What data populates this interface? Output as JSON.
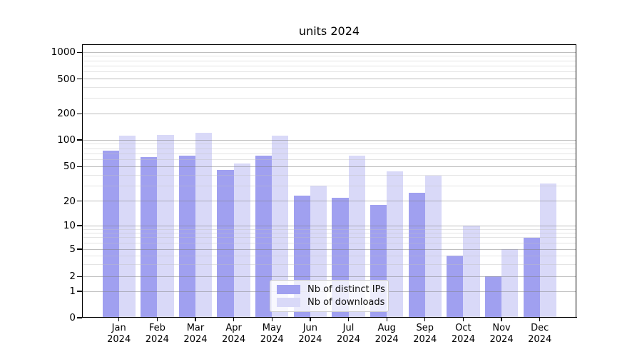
{
  "chart_data": {
    "type": "bar",
    "title": "units 2024",
    "categories": [
      "Jan",
      "Feb",
      "Mar",
      "Apr",
      "May",
      "Jun",
      "Jul",
      "Aug",
      "Sep",
      "Oct",
      "Nov",
      "Dec"
    ],
    "category_year": "2024",
    "series": [
      {
        "name": "Nb of distinct IPs",
        "color": "#a0a0f0",
        "values": [
          75,
          64,
          66,
          46,
          66,
          23,
          22,
          18,
          25,
          4,
          2,
          7
        ]
      },
      {
        "name": "Nb of downloads",
        "color": "#d9d9f8",
        "values": [
          112,
          115,
          121,
          54,
          112,
          30,
          67,
          44,
          39,
          10,
          5,
          32
        ]
      }
    ],
    "yscale": "symlog",
    "yticks": [
      0,
      1,
      2,
      5,
      10,
      20,
      50,
      100,
      200,
      500,
      1000
    ],
    "ylim": [
      0,
      1400
    ],
    "xlabel": "",
    "ylabel": "",
    "grid": true,
    "legend_position": "lower-center"
  }
}
